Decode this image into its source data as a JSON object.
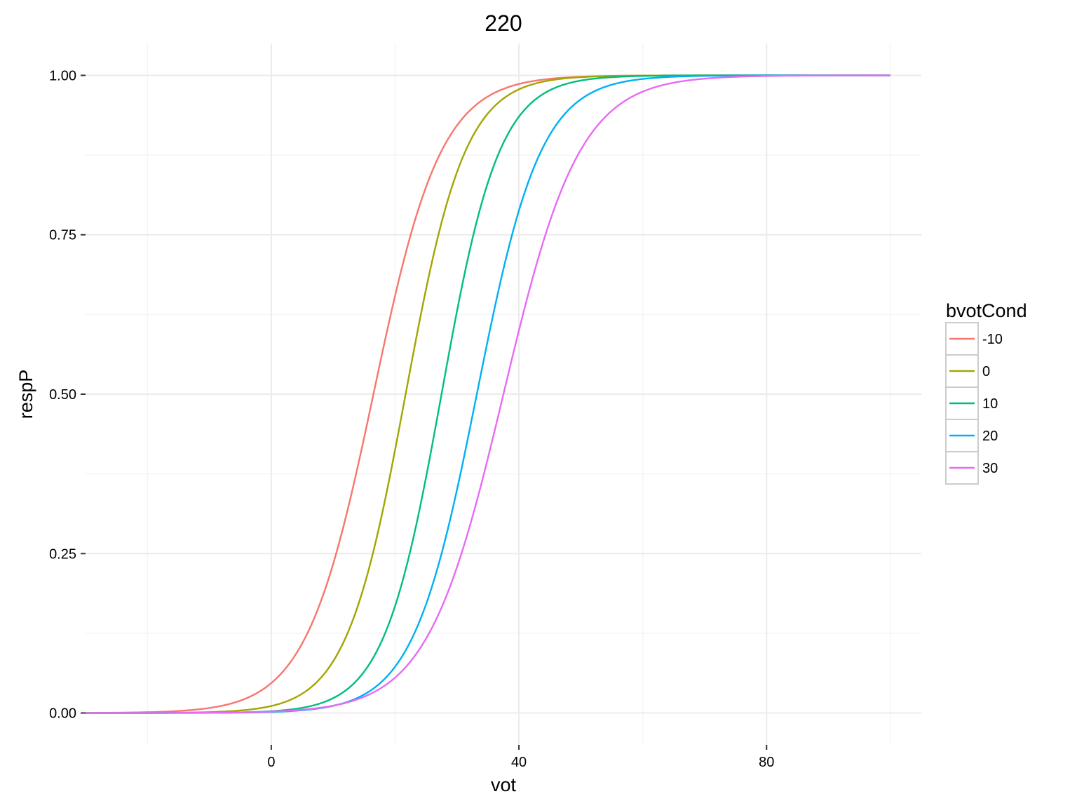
{
  "chart_data": {
    "type": "line",
    "title": "220",
    "xlabel": "vot",
    "ylabel": "respP",
    "xlim": [
      -30,
      105
    ],
    "ylim": [
      -0.05,
      1.05
    ],
    "x_range": [
      -30,
      100
    ],
    "x_ticks": [
      0,
      40,
      80
    ],
    "x_tick_labels": [
      "0",
      "40",
      "80"
    ],
    "y_ticks": [
      0,
      0.25,
      0.5,
      0.75,
      1
    ],
    "y_tick_labels": [
      "0.00",
      "0.25",
      "0.50",
      "0.75",
      "1.00"
    ],
    "grid": true,
    "legend": {
      "title": "bvotCond",
      "position": "right"
    },
    "series": [
      {
        "name": "-10",
        "color": "#F8766D",
        "logistic": {
          "midpoint": 16.5,
          "slope": 0.1825
        }
      },
      {
        "name": "0",
        "color": "#A3A500",
        "logistic": {
          "midpoint": 21.7,
          "slope": 0.2075
        }
      },
      {
        "name": "10",
        "color": "#00BF7D",
        "logistic": {
          "midpoint": 27.5,
          "slope": 0.2135
        }
      },
      {
        "name": "20",
        "color": "#00B0F6",
        "logistic": {
          "midpoint": 33.2,
          "slope": 0.193
        }
      },
      {
        "name": "30",
        "color": "#E76BF3",
        "logistic": {
          "midpoint": 37.5,
          "slope": 0.162
        }
      }
    ]
  }
}
